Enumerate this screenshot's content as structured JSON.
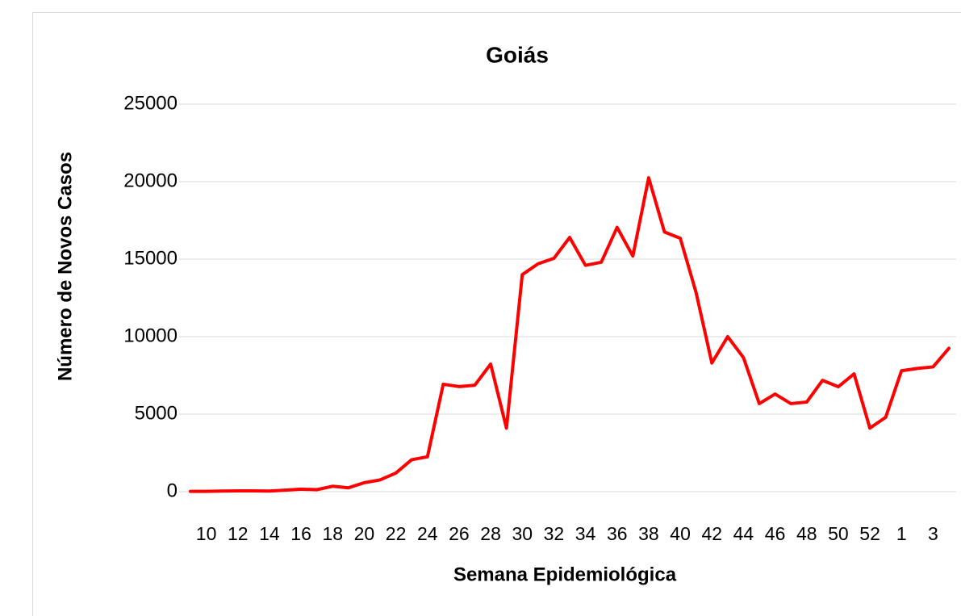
{
  "chart_data": {
    "type": "line",
    "title": "Goiás",
    "x_label": "Semana Epidemiológica",
    "y_label": "Número de Novos Casos",
    "categories": [
      null,
      "10",
      null,
      "12",
      null,
      "14",
      null,
      "16",
      null,
      "18",
      null,
      "20",
      null,
      "22",
      null,
      "24",
      null,
      "26",
      null,
      "28",
      null,
      "30",
      null,
      "32",
      null,
      "34",
      null,
      "36",
      null,
      "38",
      null,
      "40",
      null,
      "42",
      null,
      "44",
      null,
      "46",
      null,
      "48",
      null,
      "50",
      null,
      "52",
      null,
      "1",
      null,
      "3",
      null
    ],
    "series": [
      {
        "name": "Goiás",
        "color": "#ff0000",
        "values": [
          20,
          20,
          40,
          50,
          50,
          40,
          100,
          160,
          130,
          350,
          250,
          580,
          760,
          1200,
          2060,
          2250,
          6930,
          6780,
          6870,
          8230,
          4100,
          14000,
          14700,
          15050,
          16400,
          14600,
          14800,
          17050,
          15200,
          20250,
          16750,
          16350,
          12850,
          8300,
          10000,
          8650,
          5680,
          6300,
          5680,
          5780,
          7180,
          6770,
          7600,
          4100,
          4800,
          7800,
          7950,
          8050,
          9250
        ]
      }
    ],
    "ylim": [
      0,
      25000
    ],
    "yticks": [
      0,
      5000,
      10000,
      15000,
      20000,
      25000
    ],
    "grid": true
  }
}
